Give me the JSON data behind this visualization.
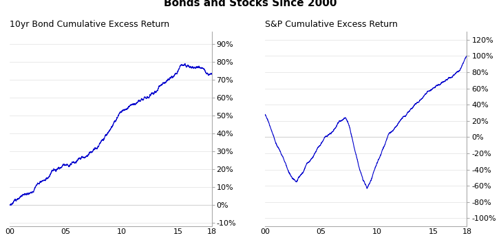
{
  "title": "Bonds and Stocks Since 2000",
  "title_fontsize": 11,
  "title_fontweight": "bold",
  "left_subtitle": "10yr Bond Cumulative Excess Return",
  "right_subtitle": "S&P Cumulative Excess Return",
  "subtitle_fontsize": 9,
  "line_color": "#0000CC",
  "line_width": 0.8,
  "ax_facecolor": "#ffffff",
  "fig_facecolor": "#ffffff",
  "spine_color": "#aaaaaa",
  "left_yticks": [
    -0.1,
    0.0,
    0.1,
    0.2,
    0.3,
    0.4,
    0.5,
    0.6,
    0.7,
    0.8,
    0.9
  ],
  "right_yticks": [
    -1.0,
    -0.8,
    -0.6,
    -0.4,
    -0.2,
    0.0,
    0.2,
    0.4,
    0.6,
    0.8,
    1.0,
    1.2
  ],
  "left_ylim": [
    -0.12,
    0.97
  ],
  "right_ylim": [
    -1.1,
    1.3
  ],
  "xtick_pos": [
    0,
    5,
    10,
    15,
    18
  ],
  "xtick_lab": [
    "00",
    "05",
    "10",
    "15",
    "18"
  ]
}
